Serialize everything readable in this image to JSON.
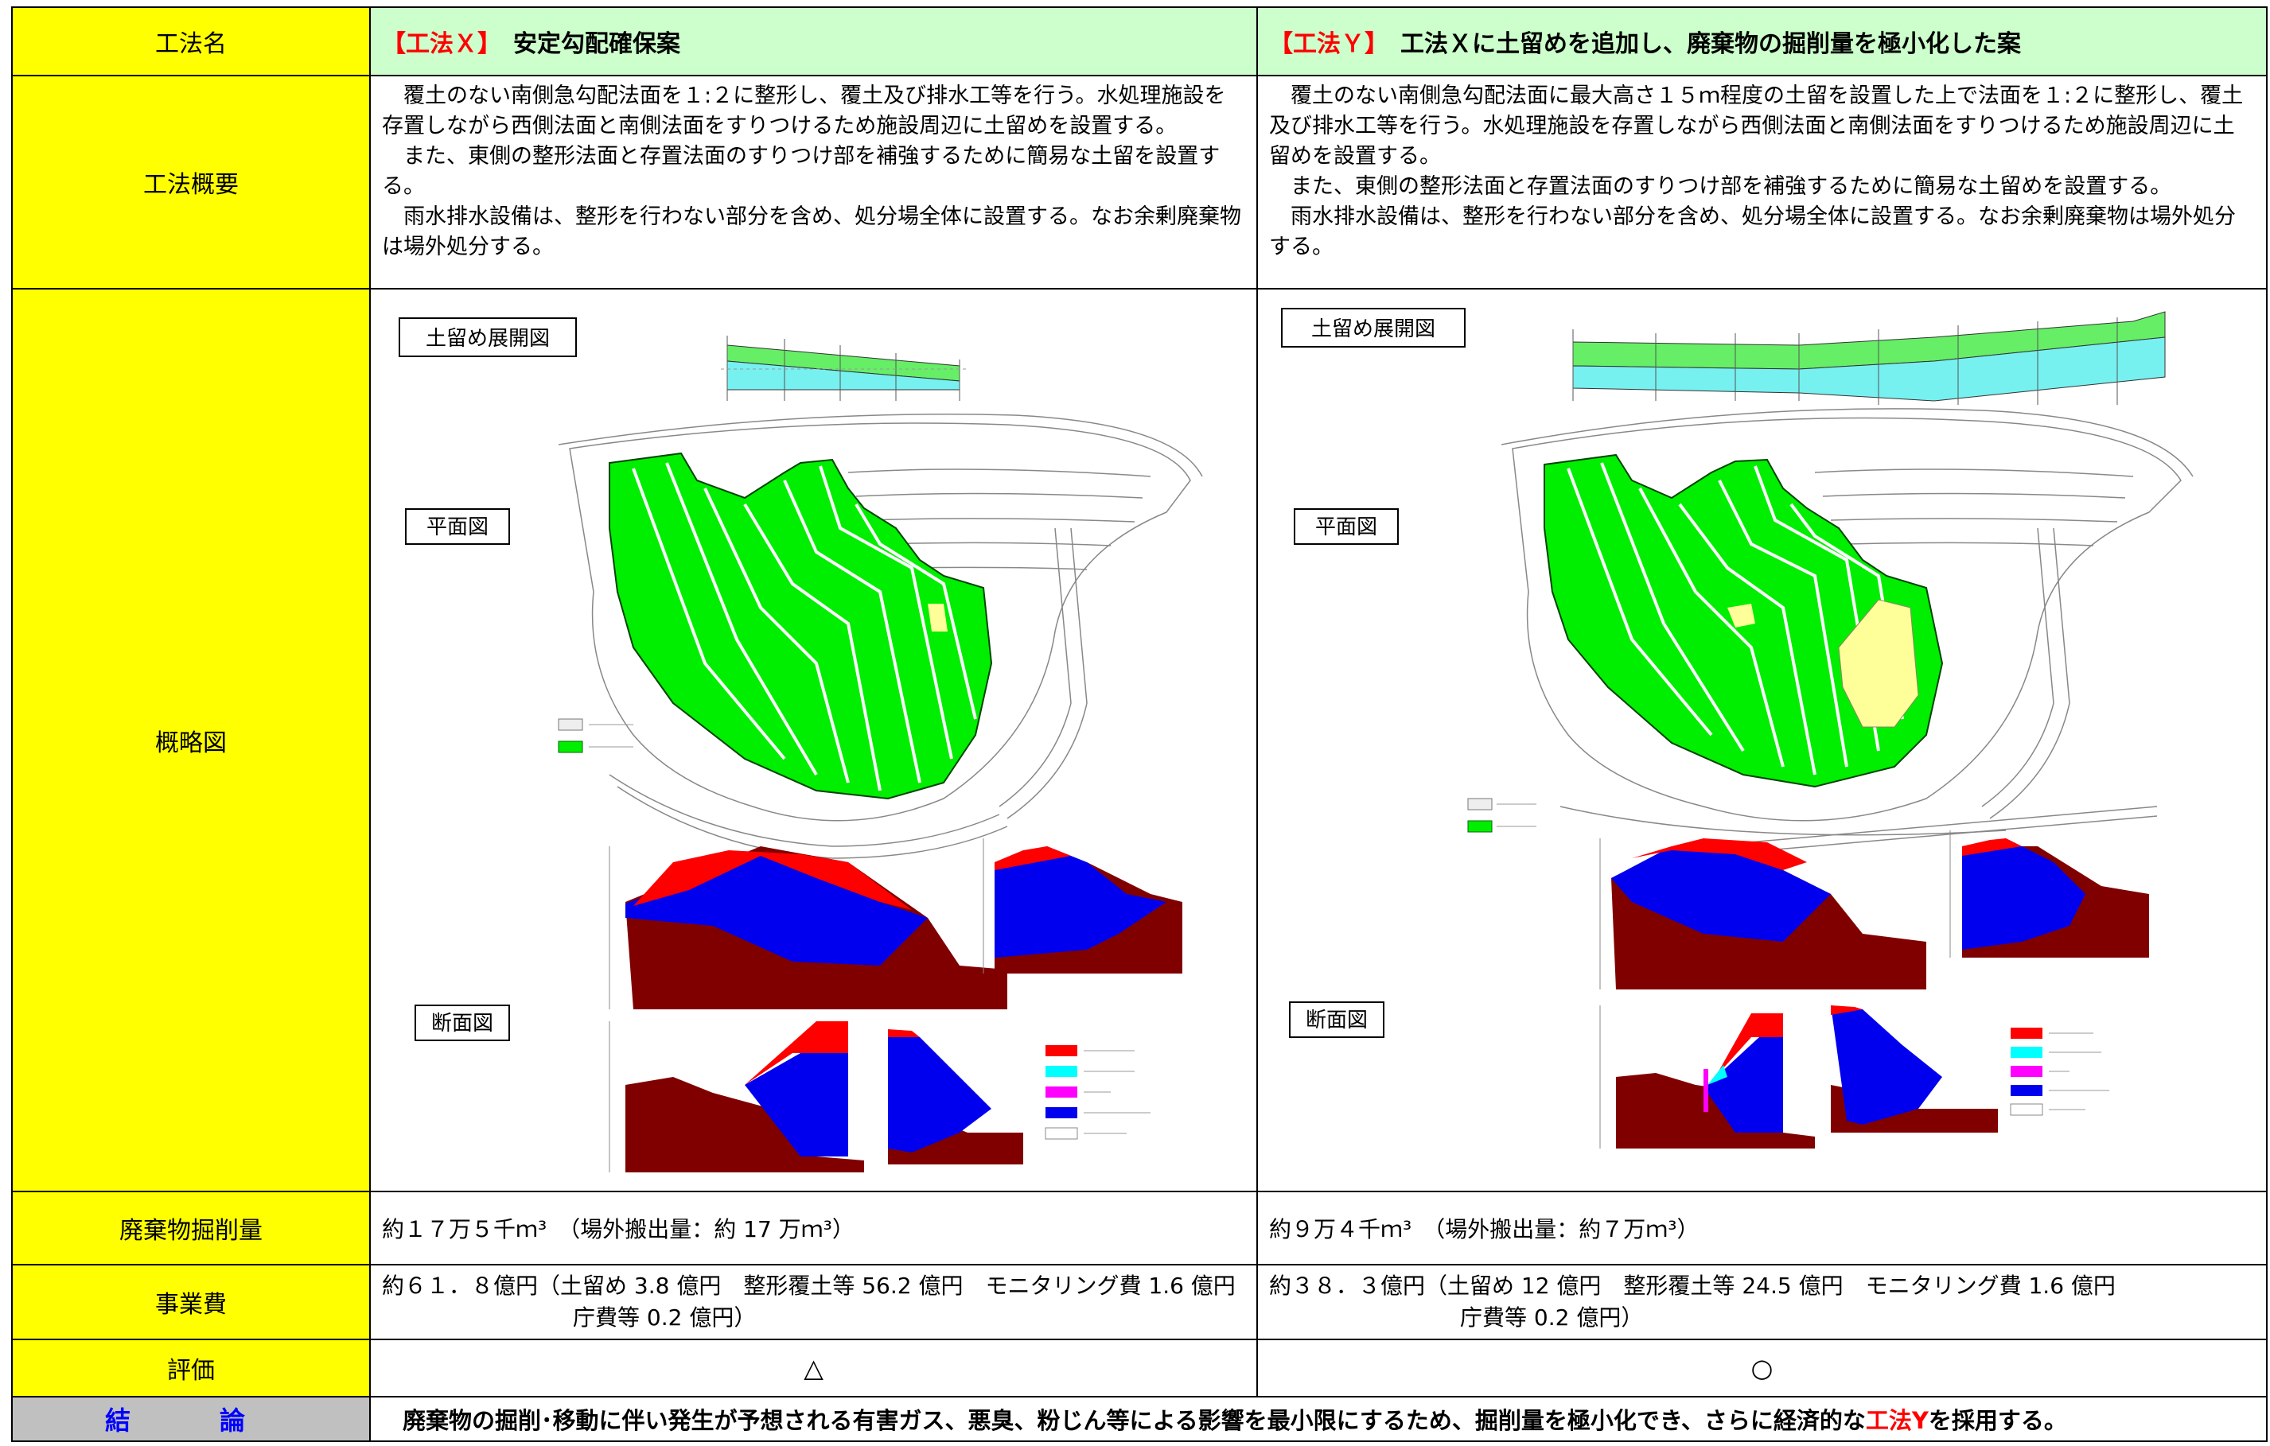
{
  "rows": {
    "method_name": "工法名",
    "overview": "工法概要",
    "diagram": "概略図",
    "excavation": "廃棄物掘削量",
    "cost": "事業費",
    "evaluation": "評価",
    "conclusion": "結　論"
  },
  "method_x": {
    "mark": "【工法Ｘ】",
    "title": "　安定勾配確保案",
    "desc": [
      "覆土のない南側急勾配法面を１:２に整形し、覆土及び排水工等を行う。水処理施設を存置しながら西側法面と南側法面をすりつけるため施設周辺に土留めを設置する。",
      "また、東側の整形法面と存置法面のすりつけ部を補強するために簡易な土留を設置する。",
      "雨水排水設備は、整形を行わない部分を含め、処分場全体に設置する。なお余剰廃棄物は場外処分する。"
    ],
    "fig_labels": {
      "expand": "土留め展開図",
      "plan": "平面図",
      "section": "断面図"
    },
    "excavation": "約１７万５千ｍ³　（場外搬出量：約 17 万ｍ³）",
    "cost_l1": "約６１．８億円（土留め 3.8 億円　整形覆土等 56.2 億円　モニタリング費 1.6 億円",
    "cost_l2": "庁費等 0.2 億円）",
    "evaluation": "△"
  },
  "method_y": {
    "mark": "【工法Ｙ】",
    "title": "　工法Ｘに土留めを追加し、廃棄物の掘削量を極小化した案",
    "desc": [
      "覆土のない南側急勾配法面に最大高さ１５ｍ程度の土留を設置した上で法面を１:２に整形し、覆土及び排水工等を行う。水処理施設を存置しながら西側法面と南側法面をすりつけるため施設周辺に土留めを設置する。",
      "また、東側の整形法面と存置法面のすりつけ部を補強するために簡易な土留めを設置する。",
      "雨水排水設備は、整形を行わない部分を含め、処分場全体に設置する。なお余剰廃棄物は場外処分する。"
    ],
    "fig_labels": {
      "expand": "土留め展開図",
      "plan": "平面図",
      "section": "断面図"
    },
    "excavation": "約９万４千ｍ³　（場外搬出量：約７万ｍ³）",
    "cost_l1": "約３８．３億円（土留め 12 億円　整形覆土等 24.5 億円　モニタリング費 1.6 億円",
    "cost_l2": "庁費等 0.2 億円）",
    "evaluation": "○"
  },
  "conclusion": {
    "text": "廃棄物の掘削･移動に伴い発生が予想される有害ガス、悪臭、粉じん等による影響を最小限にするため、掘削量を極小化でき、さらに経済的な",
    "highlight": "工法Y",
    "tail": "を採用する。"
  },
  "colors": {
    "header_yellow": "#ffff00",
    "title_green": "#ccffcc",
    "shaping_green": "#00ee00",
    "waste_red": "#ff0000",
    "waste_blue": "#0000ee",
    "ground_brown": "#800000",
    "cyan": "#00ffff",
    "magenta": "#ff00ff"
  }
}
